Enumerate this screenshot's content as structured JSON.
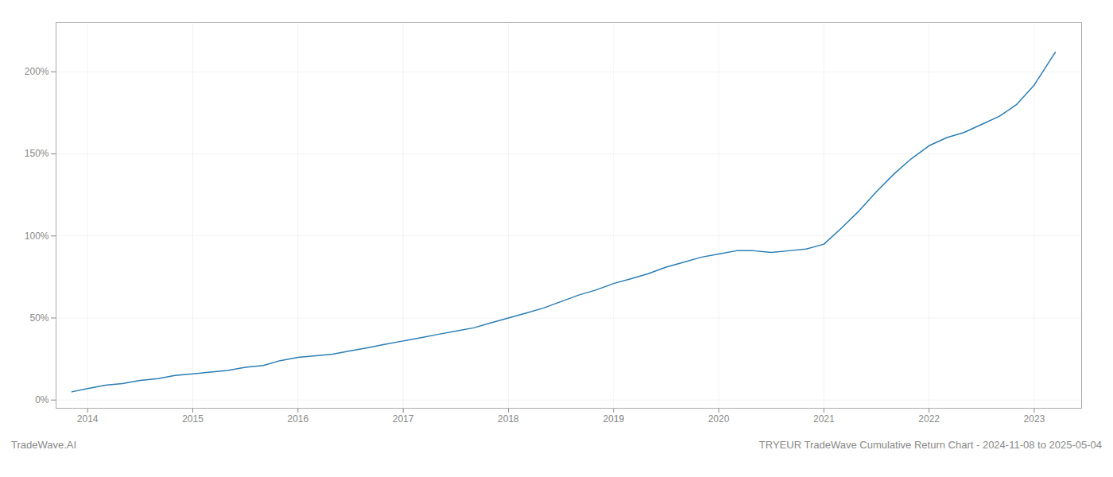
{
  "chart_data": {
    "type": "line",
    "x": [
      2013.85,
      2014.0,
      2014.17,
      2014.33,
      2014.5,
      2014.67,
      2014.83,
      2015.0,
      2015.17,
      2015.33,
      2015.5,
      2015.67,
      2015.83,
      2016.0,
      2016.17,
      2016.33,
      2016.5,
      2016.67,
      2016.83,
      2017.0,
      2017.17,
      2017.33,
      2017.5,
      2017.67,
      2017.83,
      2018.0,
      2018.17,
      2018.33,
      2018.5,
      2018.67,
      2018.83,
      2019.0,
      2019.17,
      2019.33,
      2019.5,
      2019.67,
      2019.83,
      2020.0,
      2020.17,
      2020.33,
      2020.5,
      2020.67,
      2020.83,
      2021.0,
      2021.17,
      2021.33,
      2021.5,
      2021.67,
      2021.83,
      2022.0,
      2022.17,
      2022.33,
      2022.5,
      2022.67,
      2022.83,
      2023.0,
      2023.2
    ],
    "values": [
      5,
      7,
      9,
      10,
      12,
      13,
      15,
      16,
      17,
      18,
      20,
      21,
      24,
      26,
      27,
      28,
      30,
      32,
      34,
      36,
      38,
      40,
      42,
      44,
      47,
      50,
      53,
      56,
      60,
      64,
      67,
      71,
      74,
      77,
      81,
      84,
      87,
      89,
      91,
      91,
      90,
      91,
      92,
      95,
      105,
      115,
      127,
      138,
      147,
      155,
      160,
      163,
      168,
      173,
      180,
      192,
      212
    ],
    "color": "#2a7db5",
    "xlim": [
      2013.7,
      2023.45
    ],
    "ylim": [
      -5,
      230
    ],
    "xticks": [
      2014,
      2015,
      2016,
      2017,
      2018,
      2019,
      2020,
      2021,
      2022,
      2023
    ],
    "yticks": [
      {
        "value": 0,
        "label": "0%"
      },
      {
        "value": 50,
        "label": "50%"
      },
      {
        "value": 100,
        "label": "100%"
      },
      {
        "value": 150,
        "label": "150%"
      },
      {
        "value": 200,
        "label": "200%"
      }
    ],
    "grid": true,
    "annotations": [
      "TradeWave.AI",
      "TRYEUR TradeWave Cumulative Return Chart - 2024-11-08 to 2025-05-04"
    ]
  }
}
